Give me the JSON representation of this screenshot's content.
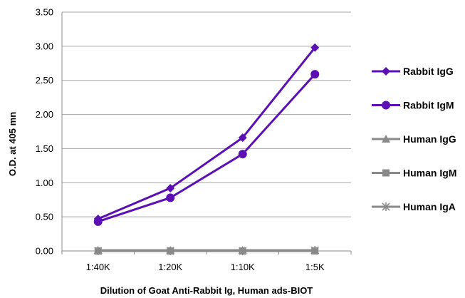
{
  "chart_data": {
    "type": "line",
    "title": "",
    "xlabel": "Dilution of Goat Anti-Rabbit Ig, Human ads-BIOT",
    "ylabel": "O.D. at 405 mn",
    "categories": [
      "1:40K",
      "1:20K",
      "1:10K",
      "1:5K"
    ],
    "ylim": [
      0,
      3.5
    ],
    "yticks": [
      "0.00",
      "0.50",
      "1.00",
      "1.50",
      "2.00",
      "2.50",
      "3.00",
      "3.50"
    ],
    "grid": true,
    "legend_position": "right",
    "series": [
      {
        "name": "Rabbit IgG",
        "values": [
          0.47,
          0.92,
          1.66,
          2.98
        ],
        "color": "#5b0fb5",
        "marker": "diamond"
      },
      {
        "name": "Rabbit IgM",
        "values": [
          0.43,
          0.78,
          1.42,
          2.59
        ],
        "color": "#5b0fb5",
        "marker": "circle"
      },
      {
        "name": "Human IgG",
        "values": [
          0.01,
          0.01,
          0.01,
          0.01
        ],
        "color": "#8a8a8a",
        "marker": "triangle"
      },
      {
        "name": "Human IgM",
        "values": [
          0.0,
          0.0,
          0.0,
          0.0
        ],
        "color": "#8a8a8a",
        "marker": "square"
      },
      {
        "name": "Human IgA",
        "values": [
          0.0,
          0.0,
          0.0,
          0.01
        ],
        "color": "#8a8a8a",
        "marker": "star"
      }
    ]
  }
}
